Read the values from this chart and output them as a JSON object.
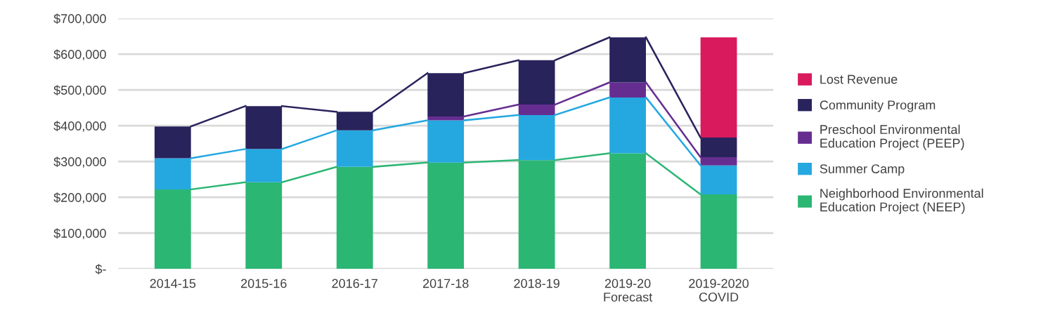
{
  "chart_data": {
    "type": "bar",
    "stacked": true,
    "categories": [
      "2014-15",
      "2015-16",
      "2016-17",
      "2017-18",
      "2018-19",
      "2019-20\nForecast",
      "2019-2020\nCOVID"
    ],
    "series": [
      {
        "name": "Neighborhood Environmental\nEducation Project (NEEP)",
        "color": "#2bb673",
        "values": [
          222000,
          242000,
          285000,
          297000,
          304000,
          323000,
          208000
        ]
      },
      {
        "name": "Summer Camp",
        "color": "#25a8e0",
        "values": [
          87000,
          93000,
          102000,
          118000,
          126000,
          156000,
          81000
        ]
      },
      {
        "name": "Preschool Environmental\nEducation Project (PEEP)",
        "color": "#662d91",
        "values": [
          null,
          null,
          null,
          11000,
          29000,
          42000,
          23000
        ]
      },
      {
        "name": "Community Program",
        "color": "#29235c",
        "values": [
          89000,
          120000,
          52000,
          121000,
          124000,
          126000,
          55000
        ]
      },
      {
        "name": "Lost Revenue",
        "color": "#d91a5d",
        "values": [
          null,
          null,
          null,
          null,
          null,
          null,
          280000
        ]
      }
    ],
    "ylim": [
      0,
      700000
    ],
    "yticks": [
      {
        "value": 0,
        "label": "$-"
      },
      {
        "value": 100000,
        "label": "$100,000"
      },
      {
        "value": 200000,
        "label": "$200,000"
      },
      {
        "value": 300000,
        "label": "$300,000"
      },
      {
        "value": 400000,
        "label": "$400,000"
      },
      {
        "value": 500000,
        "label": "$500,000"
      },
      {
        "value": 600000,
        "label": "$600,000"
      },
      {
        "value": 700000,
        "label": "$700,000"
      }
    ],
    "grid": "y",
    "legend": "right"
  }
}
